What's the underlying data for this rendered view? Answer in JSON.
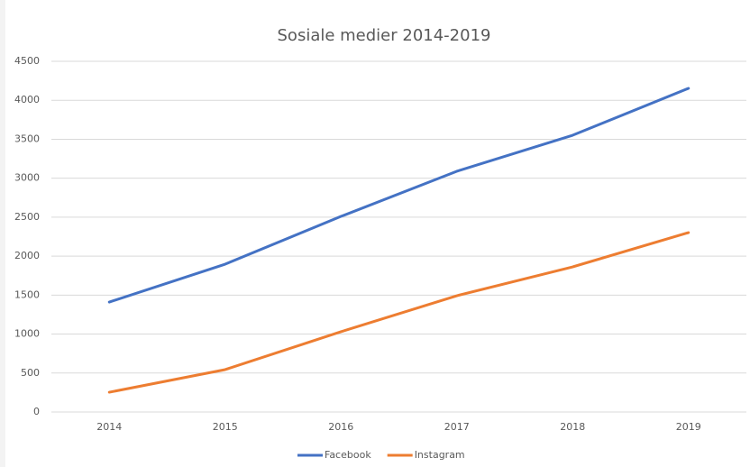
{
  "chart_data": {
    "type": "line",
    "title": "Sosiale medier 2014-2019",
    "categories": [
      "2014",
      "2015",
      "2016",
      "2017",
      "2018",
      "2019"
    ],
    "series": [
      {
        "name": "Facebook",
        "color": "#4472c4",
        "values": [
          1411,
          1897,
          2510,
          3089,
          3551,
          4153
        ]
      },
      {
        "name": "Instagram",
        "color": "#ed7d31",
        "values": [
          254,
          544,
          1030,
          1492,
          1862,
          2302
        ]
      }
    ],
    "ylim": [
      0,
      4500
    ],
    "yticks": [
      0,
      500,
      1000,
      1500,
      2000,
      2500,
      3000,
      3500,
      4000,
      4500
    ],
    "grid": true,
    "legend": "bottom"
  }
}
